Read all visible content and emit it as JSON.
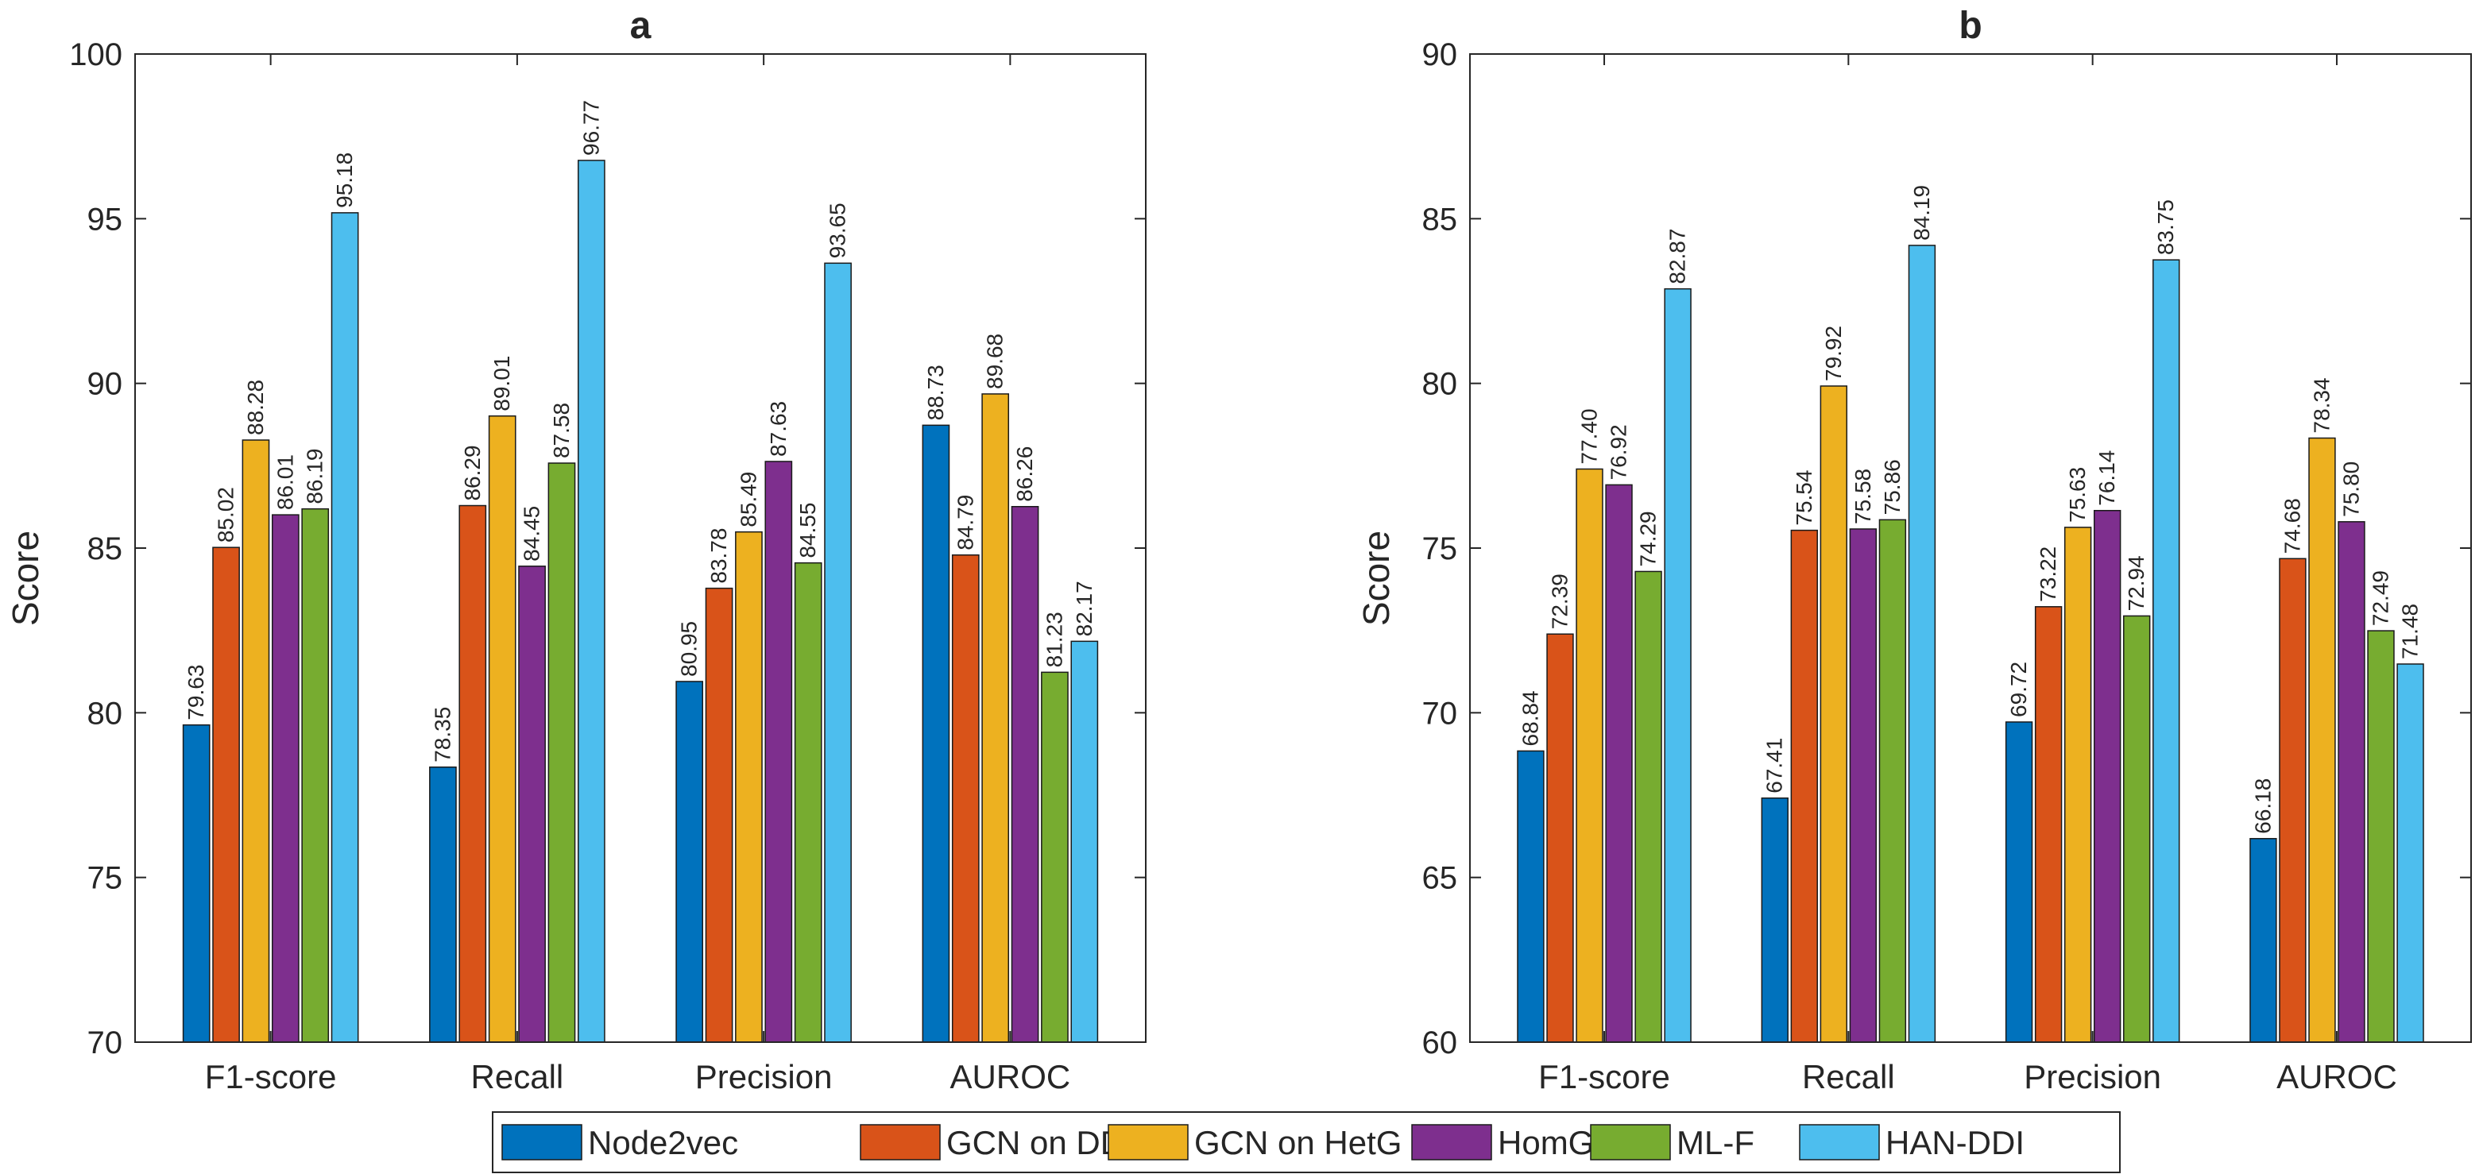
{
  "chart_data": [
    {
      "type": "bar",
      "title": "a",
      "ylabel": "Score",
      "ylim": [
        70,
        100
      ],
      "yticks": [
        70,
        75,
        80,
        85,
        90,
        95,
        100
      ],
      "categories": [
        "F1-score",
        "Recall",
        "Precision",
        "AUROC"
      ],
      "series": [
        {
          "name": "Node2vec",
          "values": [
            79.63,
            78.35,
            80.95,
            88.73
          ],
          "labels": [
            "79.63",
            "78.35",
            "80.95",
            "88.73"
          ]
        },
        {
          "name": "GCN on DDI",
          "values": [
            85.02,
            86.29,
            83.78,
            84.79
          ],
          "labels": [
            "85.02",
            "86.29",
            "83.78",
            "84.79"
          ]
        },
        {
          "name": "GCN on HetG",
          "values": [
            88.28,
            89.01,
            85.49,
            89.68
          ],
          "labels": [
            "88.28",
            "89.01",
            "85.49",
            "89.68"
          ]
        },
        {
          "name": "HomG",
          "values": [
            86.01,
            84.45,
            87.63,
            86.26
          ],
          "labels": [
            "86.01",
            "84.45",
            "87.63",
            "86.26"
          ]
        },
        {
          "name": "ML-F",
          "values": [
            86.19,
            87.58,
            84.55,
            81.23
          ],
          "labels": [
            "86.19",
            "87.58",
            "84.55",
            "81.23"
          ]
        },
        {
          "name": "HAN-DDI",
          "values": [
            95.18,
            96.77,
            93.65,
            82.17
          ],
          "labels": [
            "95.18",
            "96.77",
            "93.65",
            "82.17"
          ]
        }
      ],
      "grid": false
    },
    {
      "type": "bar",
      "title": "b",
      "ylabel": "Score",
      "ylim": [
        60,
        90
      ],
      "yticks": [
        60,
        65,
        70,
        75,
        80,
        85,
        90
      ],
      "categories": [
        "F1-score",
        "Recall",
        "Precision",
        "AUROC"
      ],
      "series": [
        {
          "name": "Node2vec",
          "values": [
            68.84,
            67.41,
            69.72,
            66.18
          ],
          "labels": [
            "68.84",
            "67.41",
            "69.72",
            "66.18"
          ]
        },
        {
          "name": "GCN on DDI",
          "values": [
            72.39,
            75.54,
            73.22,
            74.68
          ],
          "labels": [
            "72.39",
            "75.54",
            "73.22",
            "74.68"
          ]
        },
        {
          "name": "GCN on HetG",
          "values": [
            77.4,
            79.92,
            75.63,
            78.34
          ],
          "labels": [
            "77.40",
            "79.92",
            "75.63",
            "78.34"
          ]
        },
        {
          "name": "HomG",
          "values": [
            76.92,
            75.58,
            76.14,
            75.8
          ],
          "labels": [
            "76.92",
            "75.58",
            "76.14",
            "75.80"
          ]
        },
        {
          "name": "ML-F",
          "values": [
            74.29,
            75.86,
            72.94,
            72.49
          ],
          "labels": [
            "74.29",
            "75.86",
            "72.94",
            "72.49"
          ]
        },
        {
          "name": "HAN-DDI",
          "values": [
            82.87,
            84.19,
            83.75,
            71.48
          ],
          "labels": [
            "82.87",
            "84.19",
            "83.75",
            "71.48"
          ]
        }
      ],
      "grid": false
    }
  ],
  "legend": {
    "placement": "bottom-center",
    "items": [
      "Node2vec",
      "GCN on DDI",
      "GCN on HetG",
      "HomG",
      "ML-F",
      "HAN-DDI"
    ]
  },
  "colors": {
    "Node2vec": "#0072BD",
    "GCN on DDI": "#D95319",
    "GCN on HetG": "#EDB120",
    "HomG": "#7E2F8E",
    "ML-F": "#77AC30",
    "HAN-DDI": "#4DBEEE"
  }
}
